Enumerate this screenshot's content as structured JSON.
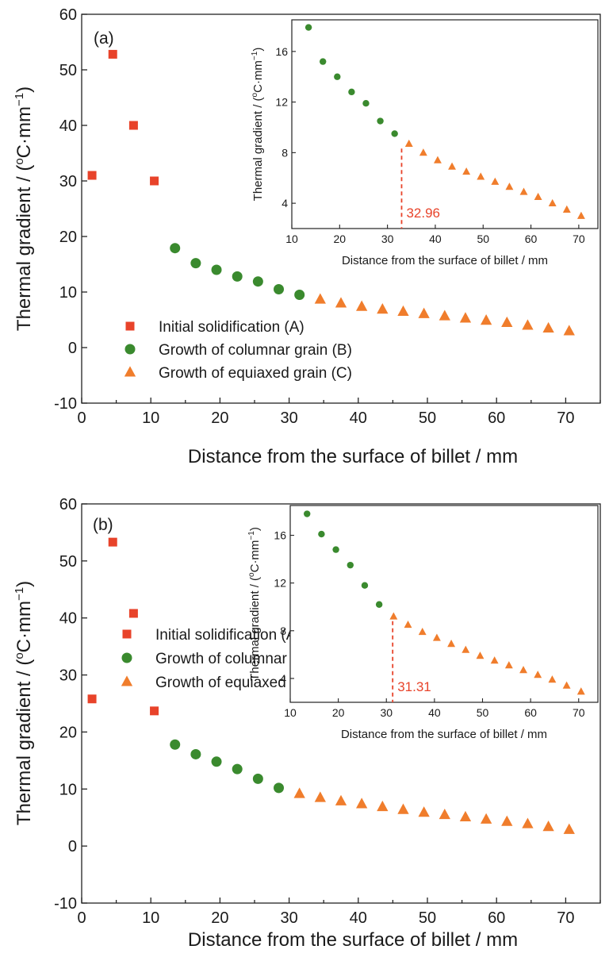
{
  "chart_data": [
    {
      "type": "scatter",
      "panel_label": "(a)",
      "title": "",
      "xlabel": "Distance from the surface of billet / mm",
      "ylabel_main": "Thermal gradient / (",
      "ylabel_deg": "o",
      "ylabel_unit": "C·mm",
      "ylabel_exp": "−1",
      "ylabel_close": ")",
      "xlim": [
        0,
        75
      ],
      "ylim": [
        -10,
        60
      ],
      "xticks": [
        "0",
        "10",
        "20",
        "30",
        "40",
        "50",
        "60",
        "70"
      ],
      "yticks": [
        "-10",
        "0",
        "10",
        "20",
        "30",
        "40",
        "50",
        "60"
      ],
      "legend_position": "bottom-left",
      "colors": {
        "A": "#e8432a",
        "B": "#3a8a2e",
        "C": "#f07d2c"
      },
      "series": [
        {
          "name": "Initial solidification (A)",
          "marker": "square",
          "x": [
            1.5,
            4.5,
            7.5,
            10.5
          ],
          "y": [
            31.0,
            52.8,
            40.0,
            30.0
          ]
        },
        {
          "name": "Growth of columnar grain (B)",
          "marker": "circle",
          "x": [
            13.5,
            16.5,
            19.5,
            22.5,
            25.5,
            28.5,
            31.5
          ],
          "y": [
            17.9,
            15.2,
            14.0,
            12.8,
            11.9,
            10.5,
            9.5
          ]
        },
        {
          "name": "Growth of equiaxed grain (C)",
          "marker": "triangle",
          "x": [
            34.5,
            37.5,
            40.5,
            43.5,
            46.5,
            49.5,
            52.5,
            55.5,
            58.5,
            61.5,
            64.5,
            67.5,
            70.5
          ],
          "y": [
            8.7,
            8.0,
            7.4,
            6.9,
            6.5,
            6.1,
            5.7,
            5.3,
            4.9,
            4.5,
            4.0,
            3.5,
            3.0
          ]
        }
      ],
      "inset": {
        "xlabel": "Distance from the surface of billet / mm",
        "xlim": [
          10,
          74
        ],
        "ylim": [
          2,
          18.5
        ],
        "xticks": [
          "10",
          "20",
          "30",
          "40",
          "50",
          "60",
          "70"
        ],
        "yticks": [
          "4",
          "8",
          "12",
          "16"
        ],
        "annotation": {
          "x": 32.96,
          "label": "32.96"
        },
        "series": [
          {
            "marker": "circle",
            "x": [
              13.5,
              16.5,
              19.5,
              22.5,
              25.5,
              28.5,
              31.5
            ],
            "y": [
              17.9,
              15.2,
              14.0,
              12.8,
              11.9,
              10.5,
              9.5
            ]
          },
          {
            "marker": "triangle",
            "x": [
              34.5,
              37.5,
              40.5,
              43.5,
              46.5,
              49.5,
              52.5,
              55.5,
              58.5,
              61.5,
              64.5,
              67.5,
              70.5
            ],
            "y": [
              8.7,
              8.0,
              7.4,
              6.9,
              6.5,
              6.1,
              5.7,
              5.3,
              4.9,
              4.5,
              4.0,
              3.5,
              3.0
            ]
          }
        ]
      }
    },
    {
      "type": "scatter",
      "panel_label": "(b)",
      "title": "",
      "xlabel": "Distance from the surface of billet / mm",
      "ylabel_main": "Thermal gradient / (",
      "ylabel_deg": "o",
      "ylabel_unit": "C·mm",
      "ylabel_exp": "−1",
      "ylabel_close": ")",
      "xlim": [
        0,
        75
      ],
      "ylim": [
        -10,
        60
      ],
      "xticks": [
        "0",
        "10",
        "20",
        "30",
        "40",
        "50",
        "60",
        "70"
      ],
      "yticks": [
        "-10",
        "0",
        "10",
        "20",
        "30",
        "40",
        "50",
        "60"
      ],
      "legend_position": "bottom-left",
      "colors": {
        "A": "#e8432a",
        "B": "#3a8a2e",
        "C": "#f07d2c"
      },
      "series": [
        {
          "name": "Initial solidification (A)",
          "marker": "square",
          "x": [
            1.5,
            4.5,
            7.5,
            10.5
          ],
          "y": [
            25.8,
            53.3,
            40.8,
            23.7
          ]
        },
        {
          "name": "Growth of columnar grain (B)",
          "marker": "circle",
          "x": [
            13.5,
            16.5,
            19.5,
            22.5,
            25.5,
            28.5
          ],
          "y": [
            17.8,
            16.1,
            14.8,
            13.5,
            11.8,
            10.2
          ]
        },
        {
          "name": "Growth of equiaxed grain (C)",
          "marker": "triangle",
          "x": [
            31.5,
            34.5,
            37.5,
            40.5,
            43.5,
            46.5,
            49.5,
            52.5,
            55.5,
            58.5,
            61.5,
            64.5,
            67.5,
            70.5
          ],
          "y": [
            9.2,
            8.5,
            7.9,
            7.4,
            6.9,
            6.4,
            5.9,
            5.5,
            5.1,
            4.7,
            4.3,
            3.9,
            3.4,
            2.9
          ]
        }
      ],
      "inset": {
        "xlabel": "Distance from the surface of billet / mm",
        "xlim": [
          10,
          74
        ],
        "ylim": [
          2,
          18.5
        ],
        "xticks": [
          "10",
          "20",
          "30",
          "40",
          "50",
          "60",
          "70"
        ],
        "yticks": [
          "4",
          "8",
          "12",
          "16"
        ],
        "annotation": {
          "x": 31.31,
          "label": "31.31"
        },
        "series": [
          {
            "marker": "circle",
            "x": [
              13.5,
              16.5,
              19.5,
              22.5,
              25.5,
              28.5
            ],
            "y": [
              17.8,
              16.1,
              14.8,
              13.5,
              11.8,
              10.2
            ]
          },
          {
            "marker": "triangle",
            "x": [
              31.5,
              34.5,
              37.5,
              40.5,
              43.5,
              46.5,
              49.5,
              52.5,
              55.5,
              58.5,
              61.5,
              64.5,
              67.5,
              70.5
            ],
            "y": [
              9.2,
              8.5,
              7.9,
              7.4,
              6.9,
              6.4,
              5.9,
              5.5,
              5.1,
              4.7,
              4.3,
              3.9,
              3.4,
              2.9
            ]
          }
        ]
      }
    }
  ]
}
